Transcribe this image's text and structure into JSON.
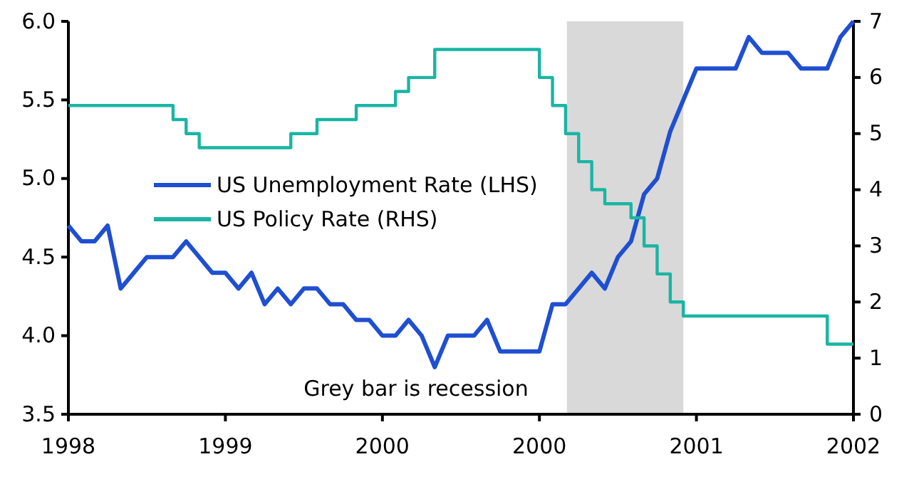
{
  "chart_data": {
    "type": "line",
    "categories": [
      "1998",
      null,
      null,
      null,
      null,
      null,
      null,
      null,
      null,
      null,
      null,
      null,
      "1999",
      null,
      null,
      null,
      null,
      null,
      null,
      null,
      null,
      null,
      null,
      null,
      "2000",
      null,
      null,
      null,
      null,
      null,
      null,
      null,
      null,
      null,
      null,
      null,
      "2000",
      null,
      null,
      null,
      null,
      null,
      null,
      null,
      null,
      null,
      null,
      null,
      "2001",
      null,
      null,
      null,
      null,
      null,
      null,
      null,
      null,
      null,
      null,
      null,
      "2002"
    ],
    "series": [
      {
        "name": "US Unemployment Rate (LHS)",
        "color": "#1f4fd1",
        "values": [
          4.7,
          4.6,
          4.6,
          4.7,
          4.3,
          4.4,
          4.5,
          4.5,
          4.5,
          4.6,
          4.5,
          4.4,
          4.4,
          4.3,
          4.4,
          4.2,
          4.3,
          4.2,
          4.3,
          4.3,
          4.2,
          4.2,
          4.1,
          4.1,
          4.0,
          4.0,
          4.1,
          4.0,
          3.8,
          4.0,
          4.0,
          4.0,
          4.1,
          3.9,
          3.9,
          3.9,
          3.9,
          4.2,
          4.2,
          4.3,
          4.4,
          4.3,
          4.5,
          4.6,
          4.9,
          5.0,
          5.3,
          5.5,
          5.7,
          5.7,
          5.7,
          5.7,
          5.9,
          5.8,
          5.8,
          5.8,
          5.7,
          5.7,
          5.7,
          5.9,
          6.0
        ]
      },
      {
        "name": "US Policy Rate (RHS)",
        "color": "#1ab5a3",
        "type": "step",
        "axis": "y2",
        "values": [
          5.5,
          5.5,
          5.5,
          5.5,
          5.5,
          5.5,
          5.5,
          5.5,
          5.25,
          5.0,
          4.75,
          4.75,
          4.75,
          4.75,
          4.75,
          4.75,
          4.75,
          5.0,
          5.0,
          5.25,
          5.25,
          5.25,
          5.5,
          5.5,
          5.5,
          5.75,
          6.0,
          6.0,
          6.5,
          6.5,
          6.5,
          6.5,
          6.5,
          6.5,
          6.5,
          6.5,
          6.0,
          5.5,
          5.0,
          4.5,
          4.0,
          3.75,
          3.75,
          3.5,
          3.0,
          2.5,
          2.0,
          1.75,
          1.75,
          1.75,
          1.75,
          1.75,
          1.75,
          1.75,
          1.75,
          1.75,
          1.75,
          1.75,
          1.25,
          1.25,
          1.25
        ]
      }
    ],
    "ylim": [
      3.5,
      6.0
    ],
    "yticks": [
      {
        "value": 3.5,
        "label": "3.5"
      },
      {
        "value": 4,
        "label": "4.0"
      },
      {
        "value": 4.5,
        "label": "4.5"
      },
      {
        "value": 5,
        "label": "5.0"
      },
      {
        "value": 5.5,
        "label": "5.5"
      },
      {
        "value": 6,
        "label": "6.0"
      }
    ],
    "y2lim": [
      0,
      7
    ],
    "y2ticks": [
      0,
      1,
      2,
      3,
      4,
      5,
      6,
      7
    ],
    "annotations": [
      "Grey bar is recession"
    ],
    "legend": "left",
    "grid": false,
    "marker": "none"
  }
}
